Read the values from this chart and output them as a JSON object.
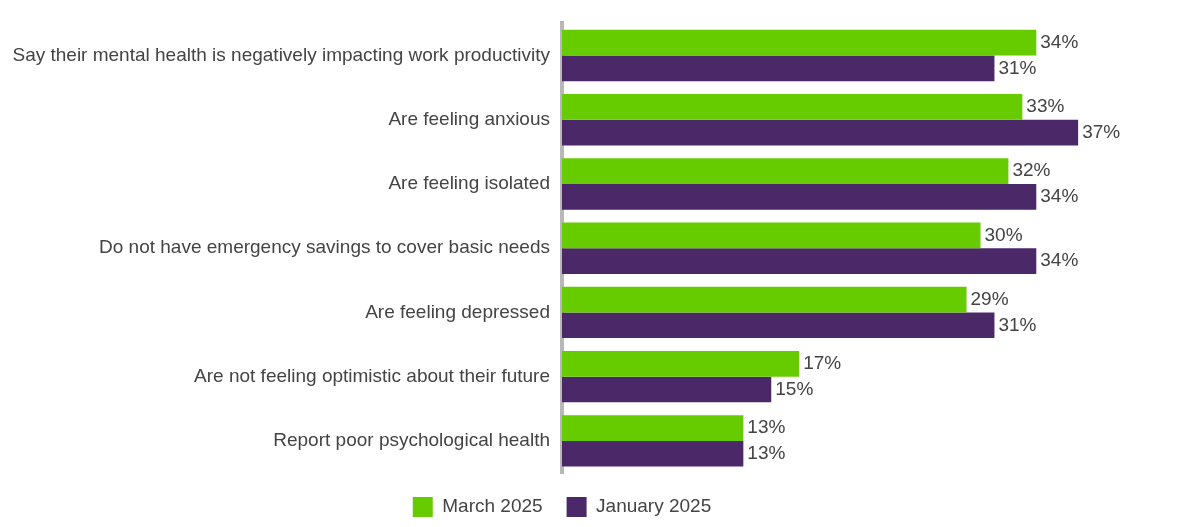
{
  "chart_data": {
    "type": "bar",
    "orientation": "horizontal",
    "categories": [
      "Say their mental health is negatively impacting work productivity",
      "Are feeling anxious",
      "Are feeling isolated",
      "Do not have emergency savings to cover basic needs",
      "Are feeling depressed",
      "Are not feeling optimistic about their future",
      "Report poor psychological health"
    ],
    "series": [
      {
        "name": "March 2025",
        "color": "#66cc00",
        "values": [
          34,
          33,
          32,
          30,
          29,
          17,
          13
        ],
        "value_labels": [
          "34%",
          "33%",
          "32%",
          "30%",
          "29%",
          "17%",
          "13%"
        ]
      },
      {
        "name": "January 2025",
        "color": "#4b2868",
        "values": [
          31,
          37,
          34,
          34,
          31,
          15,
          13
        ],
        "value_labels": [
          "31%",
          "37%",
          "34%",
          "34%",
          "31%",
          "15%",
          "13%"
        ]
      }
    ],
    "legend": "bottom",
    "tick_labels": "y"
  }
}
